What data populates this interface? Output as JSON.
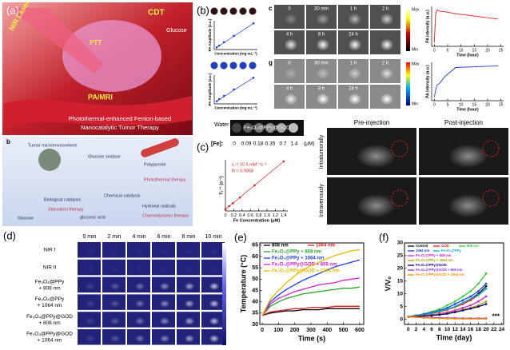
{
  "figure": {
    "a": {
      "label": "(a)",
      "nir": "NIR Laser",
      "cdt": "CDT",
      "ptt": "PTT",
      "pa": "PA/MRI",
      "glucose": "Glucose",
      "caption": [
        "Photothermal-enhanced Fenton-based",
        "Nanocatalytic Tumor Therapy"
      ]
    },
    "a2": {
      "label": "b",
      "texts": [
        "Tumor microenvironment",
        "Glucose oxidase",
        "Polypyrrole",
        "Photothermal therapy",
        "Biological catalysis",
        "Chemical catalysis",
        "Glucose",
        "gluconic acid",
        "Hydroxyl radicals",
        "Starvation therapy",
        "Chemodynamic therapy"
      ]
    },
    "b": {
      "label": "(b)",
      "c": "c",
      "g": "g",
      "times": [
        "0",
        "30 min",
        "1 h",
        "2 h",
        "4 h",
        "8 h",
        "24 h"
      ],
      "max": "Max",
      "min": "Min"
    },
    "c": {
      "label": "(c)",
      "water": "Water",
      "sample": "Fe₃O₄@PPy@GOD",
      "fe": "[Fe]:",
      "conc": [
        "0",
        "0.09",
        "0.18",
        "0.35",
        "0.7",
        "1.4"
      ],
      "unit": "(μM)",
      "pre": "Pre-injection",
      "post": "Post-injection",
      "rows": [
        "Intratumorally",
        "Intravenously"
      ]
    },
    "d": {
      "label": "(d)",
      "times": [
        "0 min",
        "2 min",
        "4 min",
        "6 min",
        "8 min",
        "10 min"
      ],
      "rows": [
        [
          "NIR I"
        ],
        [
          "NIR II"
        ],
        [
          "Fe₃O₄@PPy",
          "+ 808 nm"
        ],
        [
          "Fe₃O₄@PPy",
          "+ 1064 nm"
        ],
        [
          "Fe₃O₄@PPy@GOD",
          "+ 808 nm"
        ],
        [
          "Fe₃O₄@PPy@GOD",
          "+ 1064 nm"
        ]
      ]
    }
  },
  "chart_data": [
    {
      "type": "line",
      "label": "(e)",
      "xlabel": "Time (s)",
      "ylabel": "Temperature (°C)",
      "x": [
        0,
        50,
        100,
        150,
        200,
        250,
        300,
        350,
        400,
        450,
        500,
        550,
        600
      ],
      "xlim": [
        -15,
        625
      ],
      "ylim": [
        30,
        66
      ],
      "xticks": [
        0,
        100,
        200,
        300,
        400,
        500,
        600
      ],
      "yticks": [
        30,
        35,
        40,
        45,
        50,
        55,
        60,
        65
      ],
      "series": [
        {
          "name": "808 nm",
          "color": "#000000",
          "values": [
            34,
            35,
            35.5,
            36,
            36,
            36.5,
            36.5,
            36.5,
            37,
            37,
            37,
            37,
            37
          ]
        },
        {
          "name": "1064 nm",
          "color": "#e41a1c",
          "values": [
            34,
            35.5,
            36,
            36.5,
            37,
            37,
            37.5,
            37.5,
            37.5,
            38,
            38,
            38,
            38
          ]
        },
        {
          "name": "Fe₃O₄@PPy + 808 nm",
          "color": "#2ca02c",
          "values": [
            34,
            38,
            40,
            41.5,
            42.5,
            43.5,
            44,
            44.5,
            45,
            45.5,
            46,
            46,
            46.5
          ]
        },
        {
          "name": "Fe₃O₄@PPy + 1064 nm",
          "color": "#1f3fd6",
          "values": [
            34,
            40,
            43,
            45.5,
            47.5,
            49.5,
            51,
            52.5,
            54,
            55.5,
            56.5,
            57.5,
            58.5
          ]
        },
        {
          "name": "Fe₃O₄@PPy@GOD + 808 nm",
          "color": "#d020d0",
          "values": [
            34,
            39,
            41.5,
            43,
            44.5,
            45.5,
            46.5,
            47.5,
            48,
            48.5,
            49.5,
            50,
            50.5
          ]
        },
        {
          "name": "Fe₃O₄@PPy@GOD + 1064 nm",
          "color": "#e8b800",
          "values": [
            34,
            41,
            45,
            48.5,
            51.5,
            54,
            56,
            57.5,
            59,
            60.5,
            61.5,
            62.5,
            63
          ]
        }
      ]
    },
    {
      "type": "line",
      "label": "(f)",
      "xlabel": "Time (day)",
      "ylabel": "V/V₀",
      "annotation": "***",
      "x": [
        0,
        2,
        4,
        6,
        8,
        10,
        12,
        14,
        16,
        18,
        20
      ],
      "xlim": [
        -1,
        24.5
      ],
      "ylim": [
        -2,
        30
      ],
      "xticks": [
        0,
        2,
        4,
        6,
        8,
        10,
        12,
        14,
        16,
        18,
        20,
        22,
        24
      ],
      "yticks": [
        0,
        5,
        10,
        15,
        20,
        25,
        30
      ],
      "series": [
        {
          "name": "Control",
          "color": "#000000",
          "values": [
            1,
            1.5,
            2,
            2.5,
            3,
            4,
            5,
            6.5,
            8,
            10,
            13
          ]
        },
        {
          "name": "GOD",
          "color": "#e41a1c",
          "values": [
            1,
            1.4,
            1.8,
            2.3,
            3,
            3.8,
            4.8,
            6,
            7.5,
            9.5,
            12
          ]
        },
        {
          "name": "808 nm",
          "color": "#33cc33",
          "values": [
            1,
            1.5,
            2.2,
            3,
            4,
            5.5,
            7,
            9,
            11,
            14,
            18
          ]
        },
        {
          "name": "1064 nm",
          "color": "#1f3fd6",
          "values": [
            1,
            1.4,
            2,
            2.7,
            3.5,
            4.5,
            6,
            7.5,
            9,
            11,
            14
          ]
        },
        {
          "name": "Fe₃O₄@PPy",
          "color": "#00b0c8",
          "values": [
            1,
            1.3,
            1.8,
            2.5,
            3.2,
            4,
            5,
            6.5,
            8,
            9.5,
            12
          ]
        },
        {
          "name": "Fe₃O₄@PPy + 808 nm",
          "color": "#d020d0",
          "values": [
            1,
            1.2,
            1.5,
            1.8,
            2.2,
            2.8,
            3.5,
            4.5,
            5.5,
            7,
            9
          ]
        },
        {
          "name": "Fe₃O₄@PPy + 1064 nm",
          "color": "#b0a000",
          "values": [
            1,
            1.2,
            1.4,
            1.7,
            2,
            2.5,
            3,
            3.8,
            4.5,
            5.5,
            7
          ]
        },
        {
          "name": "Fe₃O₄@PPy@GOD",
          "color": "#000080",
          "values": [
            1,
            1.1,
            1.3,
            1.5,
            1.8,
            2.2,
            2.8,
            3.5,
            4.2,
            5,
            6
          ]
        },
        {
          "name": "Fe₃O₄@PPy@GOD + 808 nm",
          "color": "#8a2be2",
          "values": [
            1,
            0.9,
            0.8,
            0.7,
            0.6,
            0.5,
            0.5,
            0.4,
            0.4,
            0.4,
            0.4
          ]
        },
        {
          "name": "Fe₃O₄@PPy@GOD + 1064 nm",
          "color": "#ff8c00",
          "values": [
            1,
            0.8,
            0.6,
            0.5,
            0.4,
            0.3,
            0.3,
            0.2,
            0.2,
            0.2,
            0.2
          ]
        }
      ]
    },
    {
      "type": "scatter",
      "xlabel": "Fe Concentration (μM)",
      "ylabel": "T₁⁻¹ (s⁻¹)",
      "annotations": [
        "r₁ = 10.5 mM⁻¹s⁻¹",
        "R = 0.9958"
      ],
      "x": [
        0,
        0.09,
        0.18,
        0.35,
        0.7,
        1.4
      ],
      "xlim": [
        0,
        1.5
      ],
      "ylim": [
        0,
        16
      ],
      "xticks": [
        0,
        0.2,
        0.4,
        0.6,
        0.8,
        {
          "value": 1,
          "label": "1.0"
        },
        1.2,
        1.4
      ],
      "series": [
        {
          "color": "#d62728",
          "values": [
            0.5,
            1.5,
            2.4,
            4.2,
            8,
            15.5
          ]
        }
      ]
    },
    {
      "type": "scatter",
      "xlabel": "Concentration (mg mL⁻¹)",
      "ylabel": "PA Amplitude (a.u.)",
      "x": [
        0.0625,
        0.125,
        0.25,
        0.5,
        1
      ],
      "xlim": [
        0,
        1.1
      ],
      "ylim": [
        0,
        1.1
      ],
      "series": [
        {
          "color": "#1f3fd6",
          "values": [
            0.08,
            0.15,
            0.28,
            0.52,
            1
          ]
        }
      ]
    },
    {
      "type": "scatter",
      "xlabel": "Concentration (mg mL⁻¹)",
      "ylabel": "PA Amplitude (a.u.)",
      "x": [
        0.0625,
        0.125,
        0.25,
        0.5,
        1
      ],
      "xlim": [
        0,
        1.1
      ],
      "ylim": [
        0,
        1.1
      ],
      "series": [
        {
          "color": "#1f3fd6",
          "values": [
            0.1,
            0.18,
            0.3,
            0.55,
            1
          ]
        }
      ]
    },
    {
      "type": "line",
      "xlabel": "Time (hour)",
      "ylabel": "PA intensity (a.u.)",
      "x": [
        0,
        0.5,
        1,
        2,
        4,
        8,
        24
      ],
      "xlim": [
        -1,
        26
      ],
      "ylim": [
        0,
        1.1
      ],
      "xticks": [
        0,
        5,
        10,
        15,
        20,
        25
      ],
      "series": [
        {
          "color": "#e41a1c",
          "values": [
            0.1,
            0.9,
            1.0,
            0.97,
            0.95,
            0.9,
            0.75
          ]
        }
      ]
    },
    {
      "type": "line",
      "xlabel": "Time (hour)",
      "ylabel": "PA intensity (a.u.)",
      "x": [
        0,
        0.5,
        1,
        2,
        4,
        8,
        24
      ],
      "xlim": [
        -1,
        26
      ],
      "ylim": [
        0,
        1.1
      ],
      "xticks": [
        0,
        5,
        10,
        15,
        20,
        25
      ],
      "series": [
        {
          "color": "#1f3fd6",
          "values": [
            0.1,
            0.3,
            0.45,
            0.5,
            0.7,
            0.95,
            1.0
          ]
        }
      ]
    }
  ]
}
